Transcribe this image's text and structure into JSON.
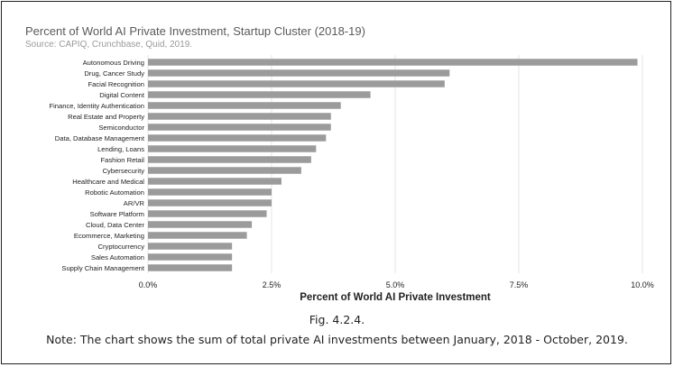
{
  "title": "Percent of World AI Private Investment, Startup Cluster (2018-19)",
  "source": "Source: CAPIQ, Crunchbase, Quid, 2019.",
  "fig_label": "Fig. 4.2.4.",
  "note": "Note: The chart shows the sum of total private AI investments between January, 2018 - October, 2019.",
  "colors": {
    "bar": "#9b9b9b",
    "grid": "#e6e6e6",
    "text": "#222222"
  },
  "chart_data": {
    "type": "bar",
    "orientation": "horizontal",
    "title": "Percent of World AI Private Investment, Startup Cluster (2018-19)",
    "xlabel": "Percent of World AI Private Investment",
    "ylabel": "",
    "xlim": [
      0,
      10
    ],
    "xticks": [
      0,
      2.5,
      5,
      7.5,
      10
    ],
    "xtick_labels": [
      "0.0%",
      "2.5%",
      "5.0%",
      "7.5%",
      "10.0%"
    ],
    "grid": true,
    "categories": [
      "Autonomous Driving",
      "Drug, Cancer Study",
      "Facial Recognition",
      "Digital Content",
      "Finance, Identity Authentication",
      "Real Estate and Property",
      "Semiconductor",
      "Data, Database Management",
      "Lending, Loans",
      "Fashion Retail",
      "Cybersecurity",
      "Healthcare and Medical",
      "Robotic Automation",
      "AR/VR",
      "Software Platform",
      "Cloud, Data Center",
      "Ecommerce, Marketing",
      "Cryptocurrency",
      "Sales Automation",
      "Supply Chain Management"
    ],
    "values": [
      9.9,
      6.1,
      6.0,
      4.5,
      3.9,
      3.7,
      3.7,
      3.6,
      3.4,
      3.3,
      3.1,
      2.7,
      2.5,
      2.5,
      2.4,
      2.1,
      2.0,
      1.7,
      1.7,
      1.7
    ]
  }
}
